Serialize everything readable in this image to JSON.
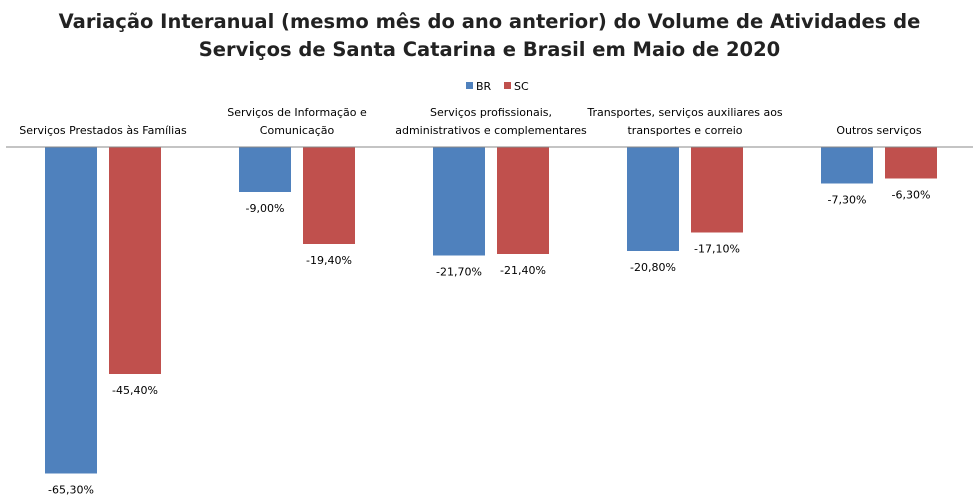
{
  "chart_data": {
    "type": "bar",
    "title": "Variação Interanual (mesmo mês do ano anterior) do Volume de Atividades de Serviços de Santa Catarina e Brasil em Maio de 2020",
    "title_lines": [
      "Variação Interanual (mesmo mês do ano anterior) do Volume de Atividades de",
      "Serviços de Santa Catarina e Brasil em Maio de 2020"
    ],
    "categories": [
      [
        "Serviços Prestados às Famílias"
      ],
      [
        "Serviços de Informação e",
        "Comunicação"
      ],
      [
        "Serviços profissionais,",
        "administrativos e complementares"
      ],
      [
        "Transportes, serviços auxiliares aos",
        "transportes e correio"
      ],
      [
        "Outros serviços"
      ]
    ],
    "series": [
      {
        "name": "BR",
        "color": "#4F81BD",
        "values": [
          -65.3,
          -9.0,
          -21.7,
          -20.8,
          -7.3
        ],
        "labels": [
          "-65,30%",
          "-9,00%",
          "-21,70%",
          "-20,80%",
          "-7,30%"
        ]
      },
      {
        "name": "SC",
        "color": "#C0504D",
        "values": [
          -45.4,
          -19.4,
          -21.4,
          -17.1,
          -6.3
        ],
        "labels": [
          "-45,40%",
          "-19,40%",
          "-21,40%",
          "-17,10%",
          "-6,30%"
        ]
      }
    ],
    "unit": "%",
    "legend": "top-center",
    "grid": false,
    "category_labels_position": "top",
    "value_axis_visible": false
  }
}
